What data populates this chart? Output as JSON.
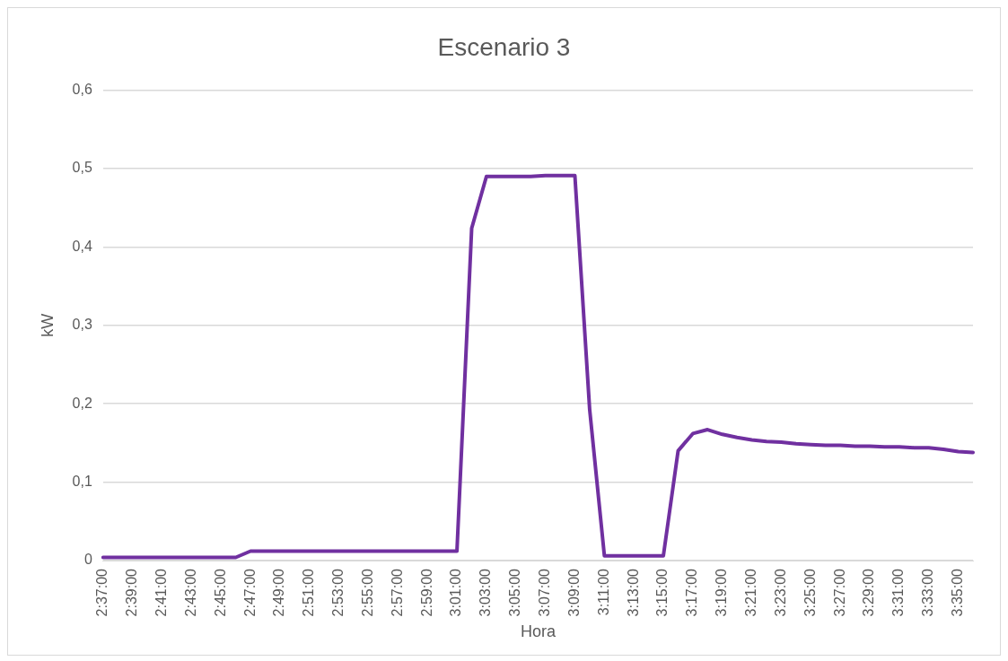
{
  "chart_data": {
    "type": "line",
    "title": "Escenario 3",
    "xlabel": "Hora",
    "ylabel": "kW",
    "categories": [
      "2:37:00",
      null,
      "2:39:00",
      null,
      "2:41:00",
      null,
      "2:43:00",
      null,
      "2:45:00",
      null,
      "2:47:00",
      null,
      "2:49:00",
      null,
      "2:51:00",
      null,
      "2:53:00",
      null,
      "2:55:00",
      null,
      "2:57:00",
      null,
      "2:59:00",
      null,
      "3:01:00",
      null,
      "3:03:00",
      null,
      "3:05:00",
      null,
      "3:07:00",
      null,
      "3:09:00",
      null,
      "3:11:00",
      null,
      "3:13:00",
      null,
      "3:15:00",
      null,
      "3:17:00",
      null,
      "3:19:00",
      null,
      "3:21:00",
      null,
      "3:23:00",
      null,
      "3:25:00",
      null,
      "3:27:00",
      null,
      "3:29:00",
      null,
      "3:31:00",
      null,
      "3:33:00",
      null,
      "3:35:00",
      null
    ],
    "series": [
      {
        "color": "#7030a0",
        "values": [
          0.004,
          0.004,
          0.004,
          0.004,
          0.004,
          0.004,
          0.004,
          0.004,
          0.004,
          0.004,
          0.012,
          0.012,
          0.012,
          0.012,
          0.012,
          0.012,
          0.012,
          0.012,
          0.012,
          0.012,
          0.012,
          0.012,
          0.012,
          0.012,
          0.012,
          0.424,
          0.49,
          0.49,
          0.49,
          0.49,
          0.491,
          0.491,
          0.491,
          0.193,
          0.006,
          0.006,
          0.006,
          0.006,
          0.006,
          0.14,
          0.162,
          0.167,
          0.161,
          0.157,
          0.154,
          0.152,
          0.151,
          0.149,
          0.148,
          0.147,
          0.147,
          0.146,
          0.146,
          0.145,
          0.145,
          0.144,
          0.144,
          0.142,
          0.139,
          0.138
        ]
      }
    ],
    "ylim": [
      0,
      0.6
    ],
    "yticks": [
      0,
      {
        "value": 0.1,
        "label": "0,1"
      },
      {
        "value": 0.2,
        "label": "0,2"
      },
      {
        "value": 0.3,
        "label": "0,3"
      },
      {
        "value": 0.4,
        "label": "0,4"
      },
      {
        "value": 0.5,
        "label": "0,5"
      },
      {
        "value": 0.6,
        "label": "0,6"
      }
    ],
    "grid": "y",
    "marker": "none"
  }
}
